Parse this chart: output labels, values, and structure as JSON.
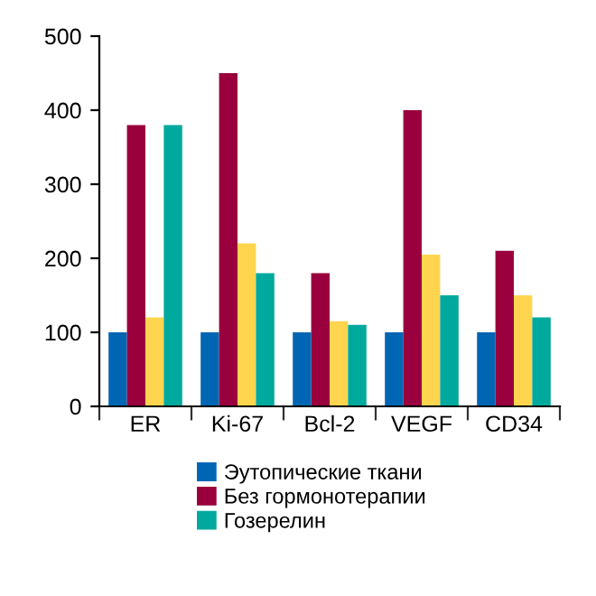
{
  "chart_data": {
    "type": "bar",
    "categories": [
      "ER",
      "Ki-67",
      "Bcl-2",
      "VEGF",
      "CD34"
    ],
    "series": [
      {
        "name": "Эутопические ткани",
        "color": "#0066b3",
        "values": [
          100,
          100,
          100,
          100,
          100
        ]
      },
      {
        "name": "Без гормонотерапии",
        "color": "#99003d",
        "values": [
          380,
          450,
          180,
          400,
          210
        ]
      },
      {
        "color": "#ffd54f",
        "values": [
          120,
          220,
          115,
          205,
          150
        ]
      },
      {
        "name": "Гозерелин",
        "color": "#00a99d",
        "values": [
          380,
          180,
          110,
          150,
          120
        ]
      }
    ],
    "ylim": [
      0,
      500
    ],
    "yticks": [
      0,
      100,
      200,
      300,
      400,
      500
    ],
    "grid": false,
    "legend": "bottom"
  }
}
